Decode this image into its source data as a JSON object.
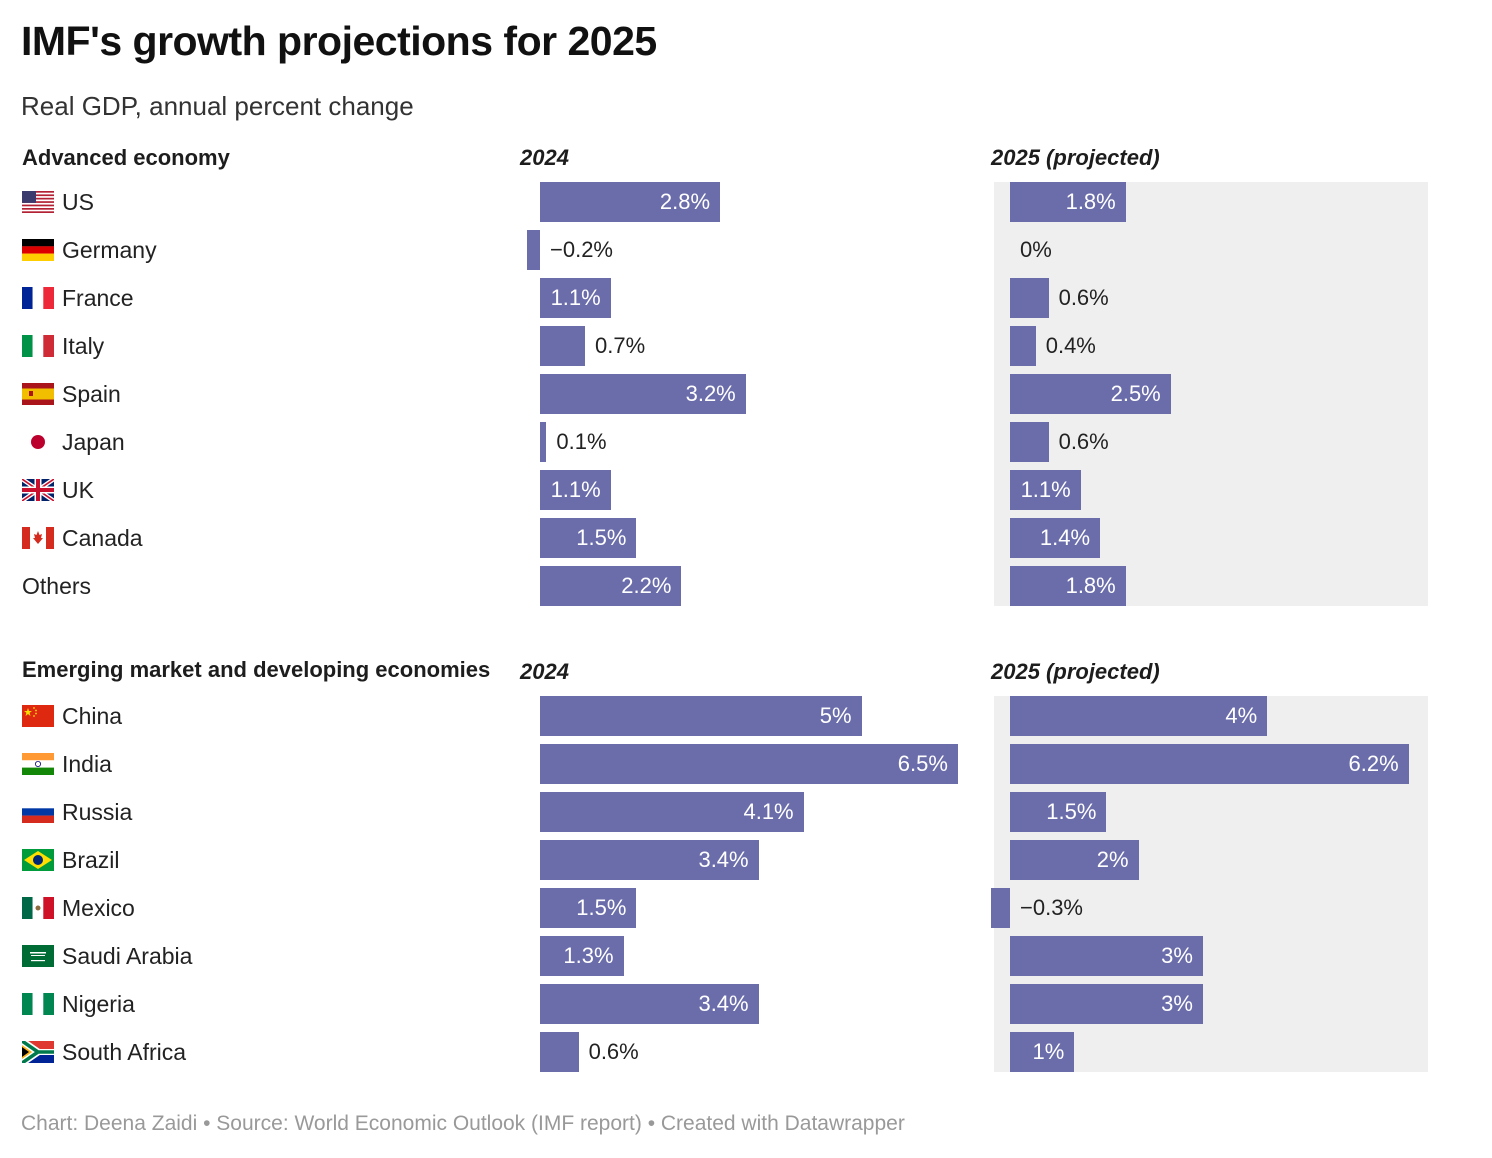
{
  "title": "IMF's growth projections for 2025",
  "subtitle": "Real GDP, annual percent change",
  "footer": "Chart: Deena Zaidi • Source: World Economic Outlook (IMF report) • Created with Datawrapper",
  "colors": {
    "bar": "#6b6dab",
    "column_bg": "#efefef"
  },
  "chart_data": [
    {
      "type": "bar",
      "title": "Advanced economy",
      "series_names": [
        "2024",
        "2025 (projected)"
      ],
      "categories": [
        "US",
        "Germany",
        "France",
        "Italy",
        "Spain",
        "Japan",
        "UK",
        "Canada",
        "Others"
      ],
      "flags": [
        "us-flag-icon",
        "germany-flag-icon",
        "france-flag-icon",
        "italy-flag-icon",
        "spain-flag-icon",
        "japan-flag-icon",
        "uk-flag-icon",
        "canada-flag-icon",
        ""
      ],
      "values_2024": [
        2.8,
        -0.2,
        1.1,
        0.7,
        3.2,
        0.1,
        1.1,
        1.5,
        2.2
      ],
      "labels_2024": [
        "2.8%",
        "−0.2%",
        "1.1%",
        "0.7%",
        "3.2%",
        "0.1%",
        "1.1%",
        "1.5%",
        "2.2%"
      ],
      "values_2025": [
        1.8,
        0,
        0.6,
        0.4,
        2.5,
        0.6,
        1.1,
        1.4,
        1.8
      ],
      "labels_2025": [
        "1.8%",
        "0%",
        "0.6%",
        "0.4%",
        "2.5%",
        "0.6%",
        "1.1%",
        "1.4%",
        "1.8%"
      ]
    },
    {
      "type": "bar",
      "title": "Emerging market and developing economies",
      "series_names": [
        "2024",
        "2025 (projected)"
      ],
      "categories": [
        "China",
        "India",
        "Russia",
        "Brazil",
        "Mexico",
        "Saudi Arabia",
        "Nigeria",
        "South Africa"
      ],
      "flags": [
        "china-flag-icon",
        "india-flag-icon",
        "russia-flag-icon",
        "brazil-flag-icon",
        "mexico-flag-icon",
        "saudi-arabia-flag-icon",
        "nigeria-flag-icon",
        "south-africa-flag-icon"
      ],
      "values_2024": [
        5,
        6.5,
        4.1,
        3.4,
        1.5,
        1.3,
        3.4,
        0.6
      ],
      "labels_2024": [
        "5%",
        "6.5%",
        "4.1%",
        "3.4%",
        "1.5%",
        "1.3%",
        "3.4%",
        "0.6%"
      ],
      "values_2025": [
        4,
        6.2,
        1.5,
        2,
        -0.3,
        3,
        3,
        1
      ],
      "labels_2025": [
        "4%",
        "6.2%",
        "1.5%",
        "2%",
        "−0.3%",
        "3%",
        "3%",
        "1%"
      ]
    }
  ]
}
